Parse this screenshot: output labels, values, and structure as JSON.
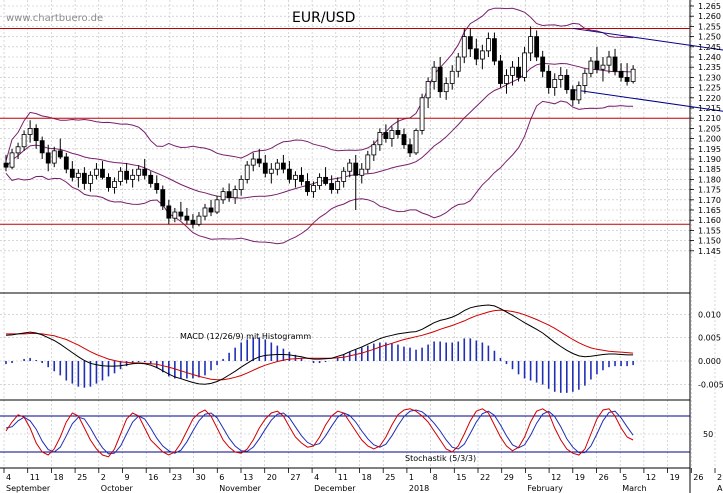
{
  "watermark": "www.chartbuero.de",
  "chart_data": {
    "type": "candlestick",
    "title": "EUR/USD",
    "price_axis": {
      "min": 1.14,
      "max": 1.265,
      "ticks": [
        "1.145",
        "1.150",
        "1.155",
        "1.160",
        "1.165",
        "1.170",
        "1.175",
        "1.180",
        "1.185",
        "1.190",
        "1.195",
        "1.200",
        "1.205",
        "1.210",
        "1.215",
        "1.220",
        "1.225",
        "1.230",
        "1.235",
        "1.240",
        "1.245",
        "1.250",
        "1.255",
        "1.260",
        "1.265"
      ]
    },
    "horizontal_lines": [
      1.254,
      1.21,
      1.158
    ],
    "trend_channel": {
      "upper": {
        "from_day": 94,
        "from": 1.254,
        "to_day": 127,
        "to": 1.24
      },
      "lower": {
        "from_day": 94,
        "from": 1.224,
        "to_day": 127,
        "to": 1.21
      }
    },
    "day_ticks": [
      "4",
      "11",
      "18",
      "25",
      "2",
      "9",
      "16",
      "23",
      "30",
      "6",
      "13",
      "20",
      "27",
      "4",
      "11",
      "18",
      "25",
      "1",
      "8",
      "15",
      "22",
      "29",
      "5",
      "12",
      "19",
      "26",
      "5",
      "12",
      "19",
      "26",
      "2"
    ],
    "months": [
      "September",
      "October",
      "November",
      "December",
      "2018",
      "February",
      "March",
      "A"
    ],
    "candles": [
      [
        1.188,
        1.192,
        1.184,
        1.186
      ],
      [
        1.186,
        1.195,
        1.185,
        1.193
      ],
      [
        1.193,
        1.198,
        1.19,
        1.196
      ],
      [
        1.196,
        1.204,
        1.194,
        1.202
      ],
      [
        1.202,
        1.209,
        1.198,
        1.205
      ],
      [
        1.205,
        1.207,
        1.195,
        1.199
      ],
      [
        1.199,
        1.201,
        1.19,
        1.193
      ],
      [
        1.193,
        1.197,
        1.184,
        1.188
      ],
      [
        1.188,
        1.196,
        1.186,
        1.194
      ],
      [
        1.194,
        1.2,
        1.19,
        1.191
      ],
      [
        1.191,
        1.193,
        1.183,
        1.185
      ],
      [
        1.185,
        1.189,
        1.179,
        1.181
      ],
      [
        1.181,
        1.185,
        1.176,
        1.183
      ],
      [
        1.183,
        1.186,
        1.175,
        1.178
      ],
      [
        1.178,
        1.184,
        1.174,
        1.182
      ],
      [
        1.182,
        1.188,
        1.18,
        1.185
      ],
      [
        1.185,
        1.189,
        1.18,
        1.181
      ],
      [
        1.181,
        1.183,
        1.174,
        1.176
      ],
      [
        1.176,
        1.181,
        1.173,
        1.179
      ],
      [
        1.179,
        1.186,
        1.177,
        1.184
      ],
      [
        1.184,
        1.188,
        1.178,
        1.18
      ],
      [
        1.18,
        1.185,
        1.176,
        1.182
      ],
      [
        1.182,
        1.187,
        1.179,
        1.185
      ],
      [
        1.185,
        1.19,
        1.18,
        1.182
      ],
      [
        1.182,
        1.184,
        1.176,
        1.178
      ],
      [
        1.178,
        1.182,
        1.173,
        1.175
      ],
      [
        1.175,
        1.177,
        1.165,
        1.167
      ],
      [
        1.167,
        1.17,
        1.158,
        1.161
      ],
      [
        1.161,
        1.166,
        1.159,
        1.164
      ],
      [
        1.164,
        1.169,
        1.16,
        1.162
      ],
      [
        1.162,
        1.166,
        1.158,
        1.16
      ],
      [
        1.16,
        1.163,
        1.156,
        1.158
      ],
      [
        1.158,
        1.164,
        1.157,
        1.162
      ],
      [
        1.162,
        1.168,
        1.16,
        1.166
      ],
      [
        1.166,
        1.17,
        1.162,
        1.164
      ],
      [
        1.164,
        1.172,
        1.163,
        1.17
      ],
      [
        1.17,
        1.176,
        1.168,
        1.174
      ],
      [
        1.174,
        1.178,
        1.169,
        1.171
      ],
      [
        1.171,
        1.177,
        1.168,
        1.175
      ],
      [
        1.175,
        1.182,
        1.172,
        1.18
      ],
      [
        1.18,
        1.189,
        1.178,
        1.187
      ],
      [
        1.187,
        1.193,
        1.184,
        1.19
      ],
      [
        1.19,
        1.195,
        1.186,
        1.188
      ],
      [
        1.188,
        1.192,
        1.181,
        1.183
      ],
      [
        1.183,
        1.188,
        1.178,
        1.185
      ],
      [
        1.185,
        1.19,
        1.182,
        1.188
      ],
      [
        1.188,
        1.192,
        1.183,
        1.185
      ],
      [
        1.185,
        1.189,
        1.178,
        1.18
      ],
      [
        1.18,
        1.184,
        1.176,
        1.182
      ],
      [
        1.182,
        1.186,
        1.177,
        1.179
      ],
      [
        1.179,
        1.183,
        1.172,
        1.174
      ],
      [
        1.174,
        1.179,
        1.171,
        1.177
      ],
      [
        1.177,
        1.183,
        1.175,
        1.181
      ],
      [
        1.181,
        1.186,
        1.177,
        1.178
      ],
      [
        1.178,
        1.182,
        1.173,
        1.175
      ],
      [
        1.175,
        1.181,
        1.173,
        1.179
      ],
      [
        1.179,
        1.186,
        1.176,
        1.184
      ],
      [
        1.184,
        1.19,
        1.181,
        1.188
      ],
      [
        1.188,
        1.192,
        1.165,
        1.182
      ],
      [
        1.182,
        1.188,
        1.178,
        1.185
      ],
      [
        1.185,
        1.194,
        1.183,
        1.192
      ],
      [
        1.192,
        1.199,
        1.189,
        1.197
      ],
      [
        1.197,
        1.205,
        1.194,
        1.203
      ],
      [
        1.203,
        1.207,
        1.198,
        1.2
      ],
      [
        1.2,
        1.206,
        1.196,
        1.204
      ],
      [
        1.204,
        1.21,
        1.2,
        1.202
      ],
      [
        1.202,
        1.205,
        1.195,
        1.197
      ],
      [
        1.197,
        1.2,
        1.191,
        1.193
      ],
      [
        1.193,
        1.205,
        1.192,
        1.204
      ],
      [
        1.204,
        1.222,
        1.202,
        1.22
      ],
      [
        1.22,
        1.23,
        1.215,
        1.228
      ],
      [
        1.228,
        1.238,
        1.224,
        1.235
      ],
      [
        1.235,
        1.24,
        1.22,
        1.223
      ],
      [
        1.223,
        1.23,
        1.219,
        1.227
      ],
      [
        1.227,
        1.236,
        1.224,
        1.233
      ],
      [
        1.233,
        1.242,
        1.23,
        1.24
      ],
      [
        1.24,
        1.254,
        1.237,
        1.25
      ],
      [
        1.25,
        1.254,
        1.24,
        1.244
      ],
      [
        1.244,
        1.249,
        1.236,
        1.239
      ],
      [
        1.239,
        1.246,
        1.234,
        1.243
      ],
      [
        1.243,
        1.252,
        1.24,
        1.249
      ],
      [
        1.249,
        1.252,
        1.236,
        1.238
      ],
      [
        1.238,
        1.241,
        1.225,
        1.227
      ],
      [
        1.227,
        1.234,
        1.222,
        1.231
      ],
      [
        1.231,
        1.238,
        1.226,
        1.235
      ],
      [
        1.235,
        1.24,
        1.228,
        1.23
      ],
      [
        1.23,
        1.245,
        1.228,
        1.242
      ],
      [
        1.242,
        1.255,
        1.238,
        1.25
      ],
      [
        1.25,
        1.253,
        1.238,
        1.24
      ],
      [
        1.24,
        1.243,
        1.23,
        1.233
      ],
      [
        1.233,
        1.236,
        1.222,
        1.225
      ],
      [
        1.225,
        1.232,
        1.221,
        1.229
      ],
      [
        1.229,
        1.235,
        1.225,
        1.231
      ],
      [
        1.231,
        1.234,
        1.222,
        1.224
      ],
      [
        1.224,
        1.226,
        1.216,
        1.219
      ],
      [
        1.219,
        1.228,
        1.217,
        1.226
      ],
      [
        1.226,
        1.234,
        1.222,
        1.232
      ],
      [
        1.232,
        1.24,
        1.23,
        1.238
      ],
      [
        1.238,
        1.245,
        1.232,
        1.234
      ],
      [
        1.234,
        1.24,
        1.228,
        1.236
      ],
      [
        1.236,
        1.243,
        1.232,
        1.24
      ],
      [
        1.24,
        1.244,
        1.231,
        1.233
      ],
      [
        1.233,
        1.237,
        1.228,
        1.23
      ],
      [
        1.23,
        1.237,
        1.226,
        1.228
      ],
      [
        1.228,
        1.236,
        1.227,
        1.234
      ]
    ],
    "macd": {
      "label": "MACD (12/26/9) mit Histogramm",
      "axis_ticks": [
        "0.010",
        "0.005",
        "0.000",
        "-0.005"
      ],
      "min": -0.0075,
      "max": 0.0135,
      "macd": [
        0.0055,
        0.0056,
        0.0058,
        0.006,
        0.0062,
        0.006,
        0.0056,
        0.005,
        0.0044,
        0.0036,
        0.0027,
        0.0018,
        0.0009,
        0.0001,
        -0.0005,
        -0.0008,
        -0.001,
        -0.0011,
        -0.0011,
        -0.001,
        -0.0008,
        -0.0006,
        -0.0005,
        -0.0006,
        -0.0009,
        -0.0014,
        -0.0021,
        -0.0028,
        -0.0034,
        -0.0038,
        -0.0042,
        -0.0046,
        -0.0049,
        -0.005,
        -0.0048,
        -0.0044,
        -0.0038,
        -0.003,
        -0.0022,
        -0.0013,
        -0.0005,
        0.0003,
        0.0009,
        0.0012,
        0.0013,
        0.0014,
        0.0014,
        0.0013,
        0.0011,
        0.0009,
        0.0006,
        0.0004,
        0.0004,
        0.0005,
        0.0006,
        0.001,
        0.0014,
        0.002,
        0.0025,
        0.003,
        0.0036,
        0.0042,
        0.0048,
        0.0052,
        0.0055,
        0.0058,
        0.006,
        0.0062,
        0.0063,
        0.0068,
        0.0075,
        0.0082,
        0.0087,
        0.009,
        0.0094,
        0.01,
        0.0108,
        0.0114,
        0.0117,
        0.0119,
        0.012,
        0.0118,
        0.0112,
        0.0105,
        0.0098,
        0.009,
        0.0082,
        0.0075,
        0.0068,
        0.006,
        0.005,
        0.004,
        0.0031,
        0.0023,
        0.0016,
        0.0011,
        0.0009,
        0.001,
        0.0012,
        0.0014,
        0.0015,
        0.0015,
        0.0014,
        0.0013,
        0.0013
      ],
      "signal": [
        0.0058,
        0.0058,
        0.0058,
        0.0058,
        0.0059,
        0.0059,
        0.0058,
        0.0056,
        0.0054,
        0.005,
        0.0046,
        0.004,
        0.0034,
        0.0027,
        0.002,
        0.0014,
        0.0009,
        0.0004,
        0.0001,
        -0.0002,
        -0.0003,
        -0.0004,
        -0.0004,
        -0.0005,
        -0.0006,
        -0.0007,
        -0.001,
        -0.0013,
        -0.0017,
        -0.0021,
        -0.0025,
        -0.0029,
        -0.0033,
        -0.0036,
        -0.0039,
        -0.004,
        -0.004,
        -0.0038,
        -0.0035,
        -0.0031,
        -0.0026,
        -0.002,
        -0.0014,
        -0.0009,
        -0.0005,
        -0.0001,
        0.0002,
        0.0004,
        0.0005,
        0.0006,
        0.0006,
        0.0006,
        0.0006,
        0.0006,
        0.0006,
        0.0007,
        0.0008,
        0.0011,
        0.0014,
        0.0017,
        0.0021,
        0.0025,
        0.003,
        0.0034,
        0.0038,
        0.0042,
        0.0046,
        0.0049,
        0.0052,
        0.0055,
        0.0059,
        0.0063,
        0.0068,
        0.0072,
        0.0076,
        0.0081,
        0.0086,
        0.0092,
        0.0097,
        0.0101,
        0.0105,
        0.0108,
        0.0109,
        0.0108,
        0.0106,
        0.0103,
        0.0099,
        0.0094,
        0.0089,
        0.0083,
        0.0077,
        0.007,
        0.0062,
        0.0054,
        0.0046,
        0.0039,
        0.0033,
        0.0028,
        0.0025,
        0.0023,
        0.0021,
        0.002,
        0.0019,
        0.0018,
        0.0017
      ]
    },
    "stochastic": {
      "label": "Stochastik (5/3/3)",
      "axis_ticks": [
        "50"
      ],
      "upper_line": 80,
      "lower_line": 20,
      "k": [
        55,
        70,
        82,
        78,
        60,
        35,
        20,
        15,
        25,
        45,
        70,
        85,
        80,
        60,
        40,
        25,
        15,
        12,
        25,
        50,
        75,
        85,
        80,
        60,
        40,
        30,
        20,
        15,
        20,
        35,
        55,
        75,
        85,
        90,
        80,
        60,
        40,
        28,
        20,
        18,
        25,
        40,
        60,
        75,
        85,
        88,
        80,
        62,
        45,
        35,
        28,
        30,
        45,
        65,
        80,
        88,
        85,
        70,
        55,
        40,
        30,
        25,
        30,
        45,
        65,
        82,
        90,
        92,
        88,
        80,
        70,
        55,
        40,
        25,
        20,
        30,
        50,
        72,
        88,
        92,
        85,
        65,
        45,
        30,
        22,
        28,
        45,
        70,
        88,
        92,
        85,
        60,
        40,
        25,
        18,
        15,
        25,
        50,
        75,
        90,
        92,
        80,
        60,
        45,
        40
      ],
      "d": [
        60,
        62,
        72,
        78,
        72,
        58,
        38,
        24,
        20,
        28,
        47,
        67,
        78,
        75,
        60,
        42,
        27,
        17,
        18,
        30,
        50,
        70,
        80,
        75,
        60,
        43,
        30,
        22,
        18,
        23,
        37,
        55,
        72,
        83,
        85,
        77,
        60,
        43,
        30,
        22,
        21,
        28,
        42,
        58,
        73,
        83,
        85,
        77,
        62,
        47,
        36,
        31,
        34,
        47,
        63,
        78,
        85,
        81,
        70,
        55,
        42,
        32,
        28,
        33,
        47,
        64,
        79,
        88,
        90,
        87,
        79,
        68,
        55,
        40,
        28,
        25,
        33,
        51,
        70,
        84,
        88,
        81,
        65,
        47,
        32,
        27,
        32,
        48,
        68,
        83,
        88,
        79,
        62,
        42,
        28,
        19,
        19,
        30,
        50,
        72,
        86,
        88,
        77,
        62,
        48
      ]
    }
  }
}
